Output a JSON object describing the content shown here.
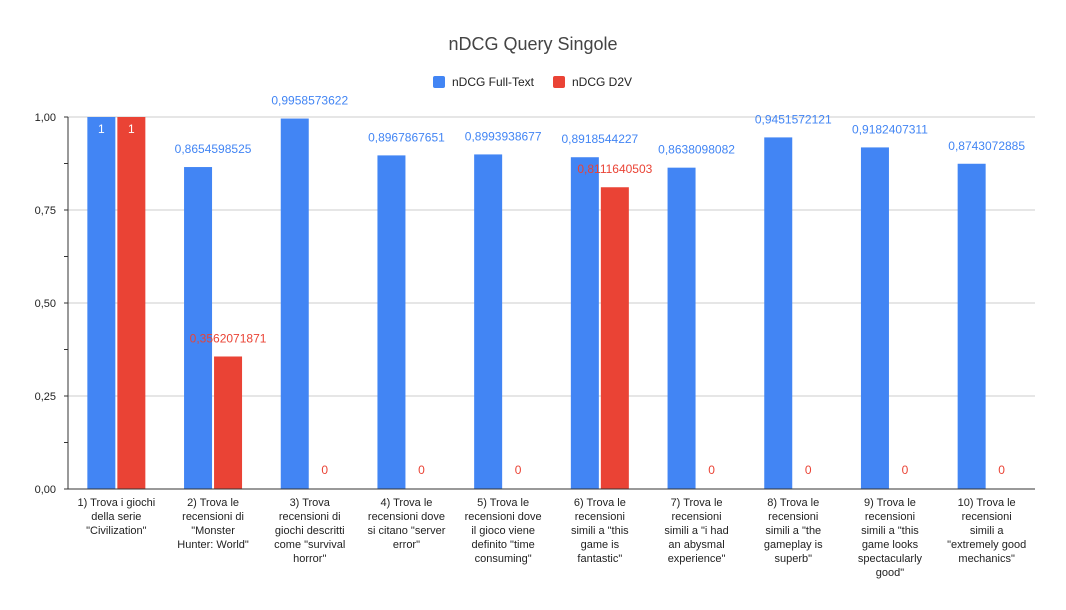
{
  "chart_data": {
    "type": "bar",
    "title": "nDCG Query Singole",
    "ylim": [
      0,
      1
    ],
    "yticks": [
      "0,00",
      "0,25",
      "0,50",
      "0,75",
      "1,00"
    ],
    "legend_position": "top-center",
    "categories": [
      [
        "1) Trova i giochi",
        "della serie",
        "\"Civilization\""
      ],
      [
        "2) Trova le",
        "recensioni di",
        "\"Monster",
        "Hunter: World\""
      ],
      [
        "3) Trova",
        "recensioni di",
        "giochi descritti",
        "come \"survival",
        "horror\""
      ],
      [
        "4) Trova le",
        "recensioni dove",
        "si citano \"server",
        "error\""
      ],
      [
        "5) Trova le",
        "recensioni dove",
        "il gioco viene",
        "definito \"time",
        "consuming\""
      ],
      [
        "6) Trova le",
        "recensioni",
        "simili a \"this",
        "game is",
        "fantastic\""
      ],
      [
        "7) Trova le",
        "recensioni",
        "simili a \"i had",
        "an abysmal",
        "experience\""
      ],
      [
        "8) Trova le",
        "recensioni",
        "simili a \"the",
        "gameplay is",
        "superb\""
      ],
      [
        "9) Trova le",
        "recensioni",
        "simili a \"this",
        "game looks",
        "spectacularly",
        "good\""
      ],
      [
        "10) Trova le",
        "recensioni",
        "simili a",
        "\"extremely good",
        "mechanics\""
      ]
    ],
    "series": [
      {
        "name": "nDCG Full-Text",
        "color": "#4285f4",
        "values": [
          1,
          0.8654598525,
          0.9958573622,
          0.8967867651,
          0.8993938677,
          0.8918544227,
          0.8638098082,
          0.9451572121,
          0.9182407311,
          0.8743072885
        ],
        "labels": [
          "1",
          "0,8654598525",
          "0,9958573622",
          "0,8967867651",
          "0,8993938677",
          "0,8918544227",
          "0,8638098082",
          "0,9451572121",
          "0,9182407311",
          "0,8743072885"
        ]
      },
      {
        "name": "nDCG D2V",
        "color": "#ea4335",
        "values": [
          1,
          0.3562071871,
          0,
          0,
          0,
          0.8111640503,
          0,
          0,
          0,
          0
        ],
        "labels": [
          "1",
          "0,3562071871",
          "0",
          "0",
          "0",
          "0,8111640503",
          "0",
          "0",
          "0",
          "0"
        ]
      }
    ]
  }
}
